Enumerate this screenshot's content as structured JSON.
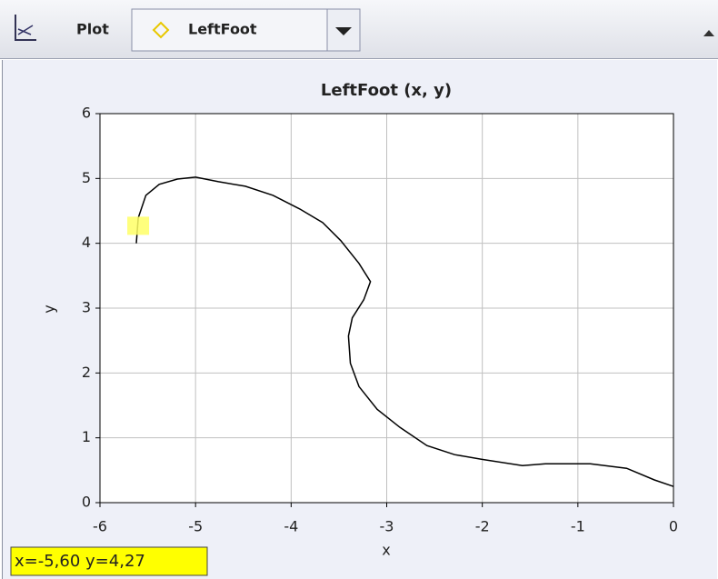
{
  "toolbar": {
    "plot_label": "Plot",
    "selected": "LeftFoot"
  },
  "chart_data": {
    "type": "line",
    "title": "LeftFoot (x, y)",
    "x_label": "x",
    "y_label": "y",
    "x": [
      -5.62,
      -5.6,
      -5.52,
      -5.38,
      -5.19,
      -5.0,
      -4.76,
      -4.48,
      -4.19,
      -3.91,
      -3.67,
      -3.48,
      -3.29,
      -3.17,
      -3.24,
      -3.36,
      -3.4,
      -3.38,
      -3.29,
      -3.1,
      -2.86,
      -2.58,
      -2.29,
      -2.01,
      -1.58,
      -1.34,
      -0.87,
      -0.49,
      -0.2,
      0
    ],
    "values": [
      4.0,
      4.39,
      4.74,
      4.91,
      4.99,
      5.02,
      4.95,
      4.88,
      4.74,
      4.53,
      4.32,
      4.04,
      3.69,
      3.41,
      3.13,
      2.85,
      2.57,
      2.15,
      1.79,
      1.44,
      1.16,
      0.88,
      0.74,
      0.67,
      0.57,
      0.6,
      0.6,
      0.53,
      0.35,
      0.25
    ],
    "color": "#000000",
    "xlim": [
      -6,
      0
    ],
    "xticks": [
      -6,
      -5,
      -4,
      -3,
      -2,
      -1,
      0
    ],
    "ylim": [
      0,
      6
    ],
    "yticks": [
      0,
      1,
      2,
      3,
      4,
      5,
      6
    ],
    "grid": true,
    "cursor": {
      "x": -5.6,
      "y": 4.27,
      "label": "x=-5,60  y=4,27"
    }
  }
}
